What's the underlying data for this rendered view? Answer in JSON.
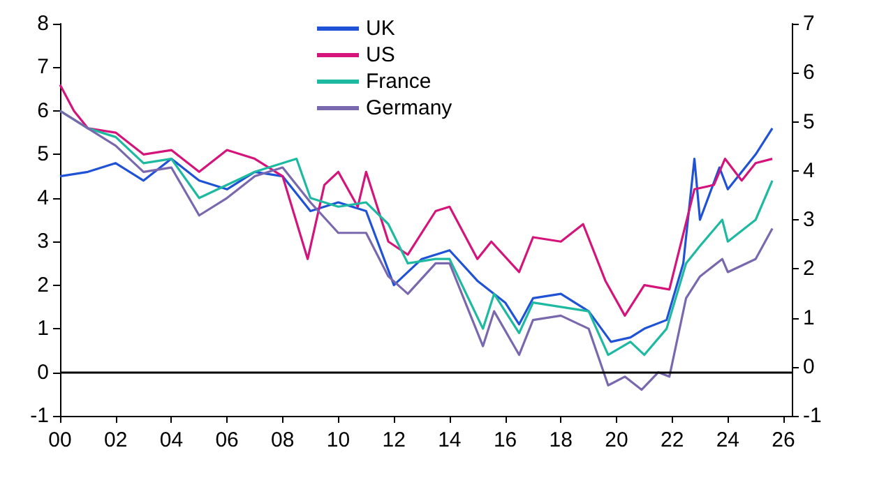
{
  "chart_data": {
    "type": "line",
    "legend": "top",
    "grid": false,
    "marker": "none",
    "line_style": "solid",
    "xlim": [
      2000,
      2026.3
    ],
    "xticks": [
      {
        "value": 2000,
        "label": "00"
      },
      {
        "value": 2002,
        "label": "02"
      },
      {
        "value": 2004,
        "label": "04"
      },
      {
        "value": 2006,
        "label": "06"
      },
      {
        "value": 2008,
        "label": "08"
      },
      {
        "value": 2010,
        "label": "10"
      },
      {
        "value": 2012,
        "label": "12"
      },
      {
        "value": 2014,
        "label": "14"
      },
      {
        "value": 2016,
        "label": "16"
      },
      {
        "value": 2018,
        "label": "18"
      },
      {
        "value": 2020,
        "label": "20"
      },
      {
        "value": 2022,
        "label": "22"
      },
      {
        "value": 2024,
        "label": "24"
      },
      {
        "value": 2026,
        "label": "26"
      }
    ],
    "ylim": [
      -1,
      8
    ],
    "yticks": [
      -1,
      0,
      1,
      2,
      3,
      4,
      5,
      6,
      7,
      8
    ],
    "y2lim": [
      -1,
      7
    ],
    "y2ticks": [
      -1,
      0,
      1,
      2,
      3,
      4,
      5,
      6,
      7
    ],
    "ref_lines": [
      {
        "axis": "y",
        "value": 0,
        "color": "#000000"
      }
    ],
    "series": [
      {
        "name": "UK",
        "color": "#1f52d6",
        "x": [
          2000,
          2001,
          2002,
          2003,
          2004,
          2005,
          2006,
          2007,
          2008,
          2009,
          2010,
          2011,
          2012,
          2013,
          2014,
          2015,
          2016,
          2016.5,
          2017,
          2018,
          2019,
          2019.8,
          2020.5,
          2021,
          2021.8,
          2022.4,
          2022.8,
          2023,
          2023.7,
          2024,
          2025,
          2025.6
        ],
        "values": [
          4.5,
          4.6,
          4.8,
          4.4,
          4.9,
          4.4,
          4.2,
          4.6,
          4.5,
          3.7,
          3.9,
          3.7,
          2.0,
          2.6,
          2.8,
          2.1,
          1.6,
          1.1,
          1.7,
          1.8,
          1.4,
          0.7,
          0.8,
          1.0,
          1.2,
          2.5,
          4.9,
          3.5,
          4.7,
          4.2,
          5.0,
          5.6
        ]
      },
      {
        "name": "US",
        "color": "#d4147a",
        "x": [
          2000,
          2000.5,
          2001,
          2002,
          2003,
          2004,
          2005,
          2006,
          2007,
          2008,
          2008.9,
          2009.5,
          2010,
          2010.7,
          2011,
          2011.8,
          2012.5,
          2013.5,
          2014,
          2015,
          2015.5,
          2016.5,
          2017,
          2018,
          2018.8,
          2019.6,
          2020.3,
          2021,
          2021.9,
          2022.8,
          2023.5,
          2023.9,
          2024.5,
          2025,
          2025.6
        ],
        "values": [
          6.6,
          6.0,
          5.6,
          5.5,
          5.0,
          5.1,
          4.6,
          5.1,
          4.9,
          4.5,
          2.6,
          4.3,
          4.6,
          3.8,
          4.6,
          3.0,
          2.7,
          3.7,
          3.8,
          2.6,
          3.0,
          2.3,
          3.1,
          3.0,
          3.4,
          2.1,
          1.3,
          2.0,
          1.9,
          4.2,
          4.3,
          4.9,
          4.4,
          4.8,
          4.9
        ]
      },
      {
        "name": "France",
        "color": "#1db9a0",
        "x": [
          2000,
          2001,
          2002,
          2003,
          2004,
          2005,
          2006,
          2007,
          2008.5,
          2009,
          2010,
          2011,
          2011.8,
          2012.5,
          2013.5,
          2014,
          2015.2,
          2015.6,
          2016.5,
          2017,
          2018,
          2019,
          2019.7,
          2020.5,
          2021,
          2021.8,
          2022.5,
          2023,
          2023.8,
          2024,
          2025,
          2025.6
        ],
        "values": [
          6.0,
          5.6,
          5.4,
          4.8,
          4.9,
          4.0,
          4.3,
          4.6,
          4.9,
          4.0,
          3.8,
          3.9,
          3.4,
          2.5,
          2.6,
          2.6,
          1.0,
          1.8,
          0.9,
          1.6,
          1.5,
          1.4,
          0.4,
          0.7,
          0.4,
          1.0,
          2.5,
          2.9,
          3.5,
          3.0,
          3.5,
          4.4
        ]
      },
      {
        "name": "Germany",
        "color": "#7a68ae",
        "x": [
          2000,
          2001,
          2002,
          2003,
          2004,
          2005,
          2006,
          2007,
          2008,
          2009,
          2010,
          2011,
          2011.8,
          2012.5,
          2013.5,
          2014,
          2015.2,
          2015.6,
          2016.5,
          2017,
          2018,
          2019,
          2019.7,
          2020.3,
          2020.9,
          2021.5,
          2021.9,
          2022.5,
          2023,
          2023.8,
          2024,
          2025,
          2025.6
        ],
        "values": [
          6.0,
          5.6,
          5.2,
          4.6,
          4.7,
          3.6,
          4.0,
          4.5,
          4.7,
          3.9,
          3.2,
          3.2,
          2.2,
          1.8,
          2.5,
          2.5,
          0.6,
          1.4,
          0.4,
          1.2,
          1.3,
          1.0,
          -0.3,
          -0.1,
          -0.4,
          0.0,
          -0.1,
          1.7,
          2.2,
          2.6,
          2.3,
          2.6,
          3.3
        ]
      }
    ]
  }
}
